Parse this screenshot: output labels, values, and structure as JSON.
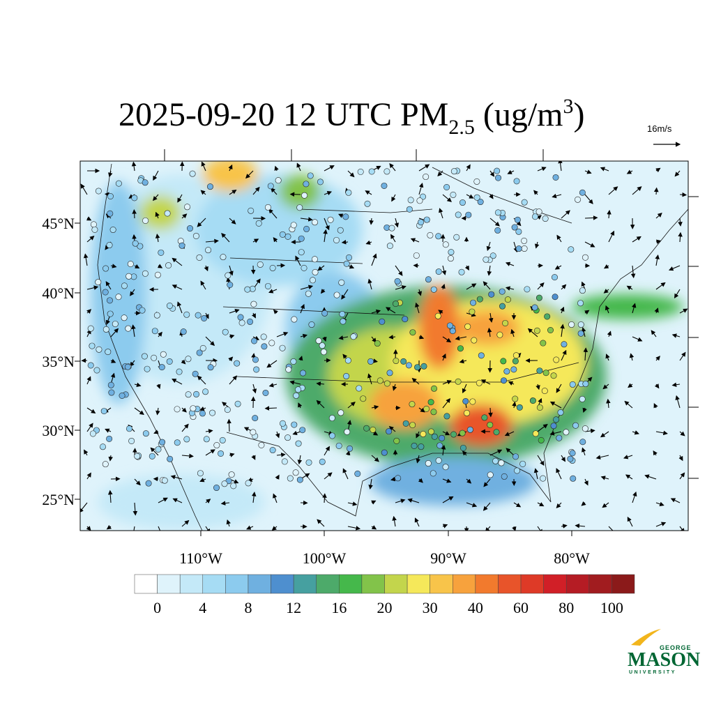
{
  "title": {
    "main": "2025-09-20 12 UTC PM",
    "subscript": "2.5",
    "unit": " (ug/m",
    "superscript": "3",
    "close": ")"
  },
  "reference_vector": "16m/s",
  "lat_labels": [
    "45°N",
    "40°N",
    "35°N",
    "30°N",
    "25°N"
  ],
  "lon_labels": [
    "110°W",
    "100°W",
    "90°W",
    "80°W"
  ],
  "colorbar": {
    "colors": [
      "#ffffff",
      "#dff3fb",
      "#c4e9f8",
      "#a6dcf4",
      "#8ccbee",
      "#6fb0e0",
      "#4e8fcf",
      "#46a0a0",
      "#4daa6a",
      "#45b84b",
      "#82c34a",
      "#c3d54c",
      "#f5e85a",
      "#f8c44a",
      "#f7a23d",
      "#f27a2d",
      "#e8542a",
      "#de3a27",
      "#d11f27",
      "#b51c24",
      "#a11c1f",
      "#8b1a1a"
    ],
    "labels": [
      0,
      4,
      8,
      12,
      16,
      20,
      30,
      40,
      60,
      80,
      100
    ]
  },
  "logo": {
    "top": "GEORGE",
    "name": "MASON",
    "bottom": "UNIVERSITY"
  }
}
